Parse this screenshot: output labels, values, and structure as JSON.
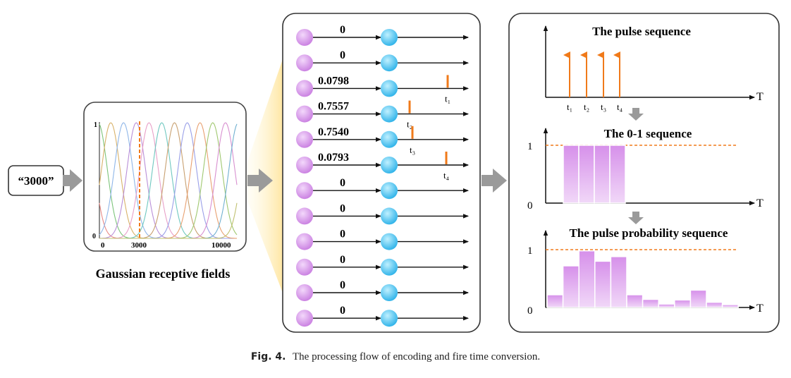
{
  "input": {
    "value": "“3000”"
  },
  "gaussian": {
    "title": "Gaussian receptive fields",
    "y_ticks": [
      "1",
      "0"
    ],
    "x_ticks": [
      "0",
      "3000",
      "10000"
    ],
    "curve_colors": [
      "#e88a86",
      "#7cc47a",
      "#d8b26a",
      "#8fb6e8",
      "#b98fd8",
      "#e8a0c8",
      "#6fc8c0",
      "#c8a070",
      "#9aa0e8",
      "#e8a070",
      "#a0c870",
      "#d890d0",
      "#70b0d0",
      "#c0c070"
    ]
  },
  "neurons": {
    "values": [
      "0",
      "0",
      "0.0798",
      "0.7557",
      "0.7540",
      "0.0793",
      "0",
      "0",
      "0",
      "0",
      "0",
      "0"
    ],
    "spikes": [
      {
        "row": 2,
        "label": "t₁"
      },
      {
        "row": 3,
        "label": "t₂"
      },
      {
        "row": 4,
        "label": "t₃"
      },
      {
        "row": 5,
        "label": "t₄"
      }
    ],
    "pre_color": "#d89be8",
    "post_color": "#4cc6f0"
  },
  "pulse_sequence": {
    "title": "The pulse sequence",
    "axis_label": "T",
    "tick_labels": [
      "t₁",
      "t₂",
      "t₃",
      "t₄"
    ]
  },
  "binary_sequence": {
    "title": "The 0-1 sequence",
    "axis_label": "T",
    "y_ticks": [
      "1",
      "0"
    ],
    "values": [
      1,
      1,
      1,
      1
    ]
  },
  "probability_sequence": {
    "title": "The pulse probability sequence",
    "axis_label": "T",
    "y_ticks": [
      "1",
      "0"
    ],
    "values": [
      0.22,
      0.72,
      0.98,
      0.8,
      0.88,
      0.22,
      0.14,
      0.06,
      0.13,
      0.3,
      0.09,
      0.05
    ]
  },
  "colors": {
    "orange": "#f07a1a",
    "purple": "#d79be6"
  },
  "caption": {
    "label": "Fig. 4.",
    "text": "The processing flow of encoding and fire time conversion."
  }
}
